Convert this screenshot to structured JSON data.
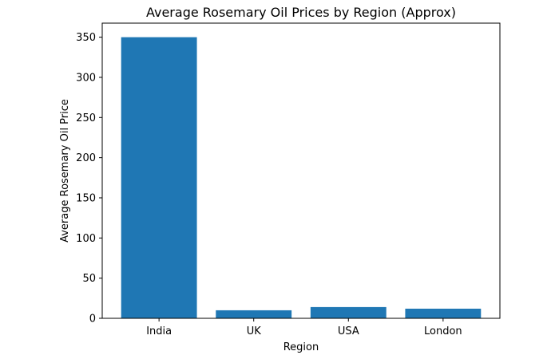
{
  "chart_data": {
    "type": "bar",
    "title": "Average Rosemary Oil Prices by Region (Approx)",
    "xlabel": "Region",
    "ylabel": "Average Rosemary Oil Price",
    "categories": [
      "India",
      "UK",
      "USA",
      "London"
    ],
    "values": [
      350,
      10,
      14,
      12
    ],
    "ylim": [
      0,
      367.5
    ],
    "yticks": [
      0,
      50,
      100,
      150,
      200,
      250,
      300,
      350
    ],
    "grid": false,
    "bar_color": "#1f77b4"
  }
}
